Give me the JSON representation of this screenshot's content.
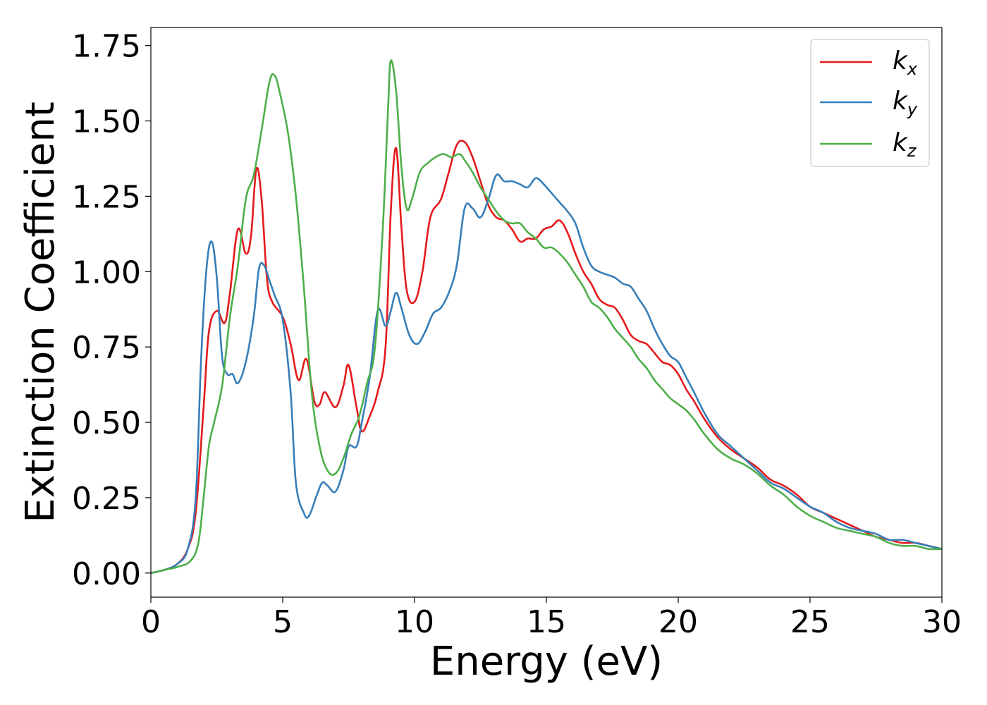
{
  "chart_data": {
    "type": "line",
    "title": "",
    "xlabel": "Energy (eV)",
    "ylabel": "Extinction Coefficient",
    "xlim": [
      0,
      30
    ],
    "ylim": [
      -0.08,
      1.81
    ],
    "xticks": [
      0,
      5,
      10,
      15,
      20,
      25,
      30
    ],
    "xtick_labels": [
      "0",
      "5",
      "10",
      "15",
      "20",
      "25",
      "30"
    ],
    "yticks": [
      0.0,
      0.25,
      0.5,
      0.75,
      1.0,
      1.25,
      1.5,
      1.75
    ],
    "ytick_labels": [
      "0.00",
      "0.25",
      "0.50",
      "0.75",
      "1.00",
      "1.25",
      "1.50",
      "1.75"
    ],
    "grid": false,
    "legend_position": "top-right",
    "series": [
      {
        "name": "k",
        "subscript": "x",
        "color": "#e41a1c",
        "x": [
          0,
          0.5,
          1.0,
          1.4,
          1.7,
          2.0,
          2.2,
          2.5,
          2.8,
          3.0,
          3.3,
          3.6,
          3.8,
          4.0,
          4.2,
          4.4,
          4.6,
          5.0,
          5.3,
          5.6,
          5.9,
          6.2,
          6.4,
          6.6,
          7.0,
          7.3,
          7.5,
          7.8,
          8.0,
          8.3,
          8.6,
          8.9,
          9.1,
          9.3,
          9.5,
          9.7,
          10.0,
          10.3,
          10.6,
          11.0,
          11.3,
          11.6,
          11.9,
          12.2,
          12.5,
          12.8,
          13.1,
          13.4,
          13.7,
          14.0,
          14.3,
          14.6,
          14.9,
          15.2,
          15.5,
          15.8,
          16.1,
          16.4,
          16.7,
          17.0,
          17.3,
          17.6,
          17.9,
          18.2,
          18.5,
          18.8,
          19.1,
          19.4,
          19.7,
          20.0,
          20.3,
          20.6,
          21.0,
          21.5,
          22.0,
          22.5,
          23.0,
          23.5,
          24.0,
          24.5,
          25.0,
          25.5,
          26.0,
          26.5,
          27.0,
          27.5,
          28.0,
          28.5,
          29.0,
          29.5,
          30.0
        ],
        "values": [
          0.0,
          0.01,
          0.03,
          0.08,
          0.2,
          0.55,
          0.8,
          0.87,
          0.83,
          0.93,
          1.14,
          1.06,
          1.12,
          1.34,
          1.24,
          0.98,
          0.9,
          0.85,
          0.76,
          0.64,
          0.71,
          0.57,
          0.56,
          0.6,
          0.55,
          0.62,
          0.69,
          0.55,
          0.47,
          0.52,
          0.6,
          0.75,
          1.2,
          1.41,
          1.15,
          0.94,
          0.9,
          1.0,
          1.18,
          1.24,
          1.33,
          1.42,
          1.43,
          1.38,
          1.3,
          1.22,
          1.18,
          1.17,
          1.14,
          1.1,
          1.11,
          1.11,
          1.14,
          1.15,
          1.17,
          1.13,
          1.06,
          1.0,
          0.96,
          0.91,
          0.89,
          0.88,
          0.84,
          0.79,
          0.77,
          0.76,
          0.73,
          0.7,
          0.69,
          0.66,
          0.61,
          0.57,
          0.51,
          0.45,
          0.41,
          0.38,
          0.35,
          0.31,
          0.29,
          0.26,
          0.22,
          0.2,
          0.18,
          0.16,
          0.14,
          0.12,
          0.11,
          0.1,
          0.1,
          0.09,
          0.08
        ]
      },
      {
        "name": "k",
        "subscript": "y",
        "color": "#377eb8",
        "x": [
          0,
          0.5,
          1.0,
          1.4,
          1.7,
          1.9,
          2.1,
          2.3,
          2.5,
          2.7,
          2.9,
          3.1,
          3.3,
          3.6,
          3.9,
          4.1,
          4.3,
          4.5,
          4.7,
          5.0,
          5.3,
          5.5,
          5.8,
          6.0,
          6.3,
          6.5,
          6.7,
          7.0,
          7.3,
          7.5,
          7.8,
          8.0,
          8.3,
          8.6,
          8.9,
          9.1,
          9.3,
          9.5,
          9.8,
          10.1,
          10.4,
          10.7,
          11.0,
          11.3,
          11.6,
          11.9,
          12.2,
          12.5,
          12.8,
          13.1,
          13.4,
          13.7,
          14.0,
          14.3,
          14.6,
          14.9,
          15.2,
          15.5,
          15.8,
          16.1,
          16.4,
          16.7,
          17.0,
          17.3,
          17.6,
          17.9,
          18.2,
          18.5,
          18.8,
          19.1,
          19.4,
          19.7,
          20.0,
          20.3,
          20.6,
          21.0,
          21.5,
          22.0,
          22.5,
          23.0,
          23.5,
          24.0,
          24.5,
          25.0,
          25.5,
          26.0,
          26.5,
          27.0,
          27.5,
          28.0,
          28.5,
          29.0,
          29.5,
          30.0
        ],
        "values": [
          0.0,
          0.01,
          0.03,
          0.08,
          0.25,
          0.7,
          1.0,
          1.1,
          0.98,
          0.72,
          0.66,
          0.66,
          0.63,
          0.7,
          0.85,
          1.01,
          1.02,
          0.97,
          0.92,
          0.84,
          0.6,
          0.3,
          0.2,
          0.19,
          0.26,
          0.3,
          0.29,
          0.27,
          0.34,
          0.42,
          0.42,
          0.5,
          0.65,
          0.87,
          0.82,
          0.87,
          0.93,
          0.88,
          0.79,
          0.76,
          0.8,
          0.86,
          0.88,
          0.93,
          1.02,
          1.21,
          1.21,
          1.18,
          1.24,
          1.32,
          1.3,
          1.3,
          1.29,
          1.28,
          1.31,
          1.29,
          1.26,
          1.23,
          1.2,
          1.16,
          1.08,
          1.02,
          1.0,
          0.99,
          0.98,
          0.96,
          0.95,
          0.91,
          0.87,
          0.81,
          0.76,
          0.72,
          0.7,
          0.65,
          0.6,
          0.53,
          0.46,
          0.42,
          0.38,
          0.34,
          0.3,
          0.28,
          0.25,
          0.22,
          0.2,
          0.17,
          0.15,
          0.14,
          0.13,
          0.11,
          0.11,
          0.1,
          0.09,
          0.08
        ]
      },
      {
        "name": "k",
        "subscript": "z",
        "color": "#4daf4a",
        "x": [
          0,
          0.5,
          1.0,
          1.5,
          1.8,
          2.0,
          2.2,
          2.4,
          2.7,
          3.0,
          3.3,
          3.6,
          3.9,
          4.2,
          4.5,
          4.7,
          4.9,
          5.2,
          5.5,
          5.8,
          6.1,
          6.4,
          6.7,
          7.0,
          7.3,
          7.6,
          7.9,
          8.2,
          8.5,
          8.8,
          9.0,
          9.1,
          9.3,
          9.5,
          9.7,
          9.9,
          10.2,
          10.5,
          10.8,
          11.1,
          11.4,
          11.7,
          11.9,
          12.2,
          12.5,
          12.8,
          13.1,
          13.4,
          13.7,
          14.0,
          14.3,
          14.6,
          14.9,
          15.2,
          15.5,
          15.8,
          16.1,
          16.4,
          16.7,
          17.0,
          17.3,
          17.6,
          17.9,
          18.2,
          18.5,
          18.8,
          19.1,
          19.4,
          19.7,
          20.0,
          20.3,
          20.6,
          21.0,
          21.5,
          22.0,
          22.5,
          23.0,
          23.5,
          24.0,
          24.5,
          25.0,
          25.5,
          26.0,
          26.5,
          27.0,
          27.5,
          28.0,
          28.5,
          29.0,
          29.5,
          30.0
        ],
        "values": [
          0.0,
          0.01,
          0.02,
          0.04,
          0.1,
          0.25,
          0.42,
          0.5,
          0.62,
          0.85,
          1.02,
          1.24,
          1.32,
          1.47,
          1.63,
          1.65,
          1.59,
          1.46,
          1.25,
          0.95,
          0.6,
          0.42,
          0.34,
          0.33,
          0.38,
          0.46,
          0.52,
          0.63,
          0.75,
          1.15,
          1.55,
          1.7,
          1.6,
          1.35,
          1.21,
          1.24,
          1.33,
          1.36,
          1.38,
          1.39,
          1.38,
          1.39,
          1.37,
          1.33,
          1.28,
          1.24,
          1.2,
          1.17,
          1.16,
          1.16,
          1.13,
          1.11,
          1.08,
          1.08,
          1.06,
          1.03,
          0.99,
          0.95,
          0.9,
          0.88,
          0.85,
          0.81,
          0.78,
          0.75,
          0.71,
          0.68,
          0.64,
          0.61,
          0.58,
          0.56,
          0.54,
          0.51,
          0.46,
          0.41,
          0.38,
          0.36,
          0.33,
          0.29,
          0.26,
          0.22,
          0.19,
          0.17,
          0.15,
          0.14,
          0.13,
          0.12,
          0.1,
          0.09,
          0.09,
          0.08,
          0.08
        ]
      }
    ]
  }
}
